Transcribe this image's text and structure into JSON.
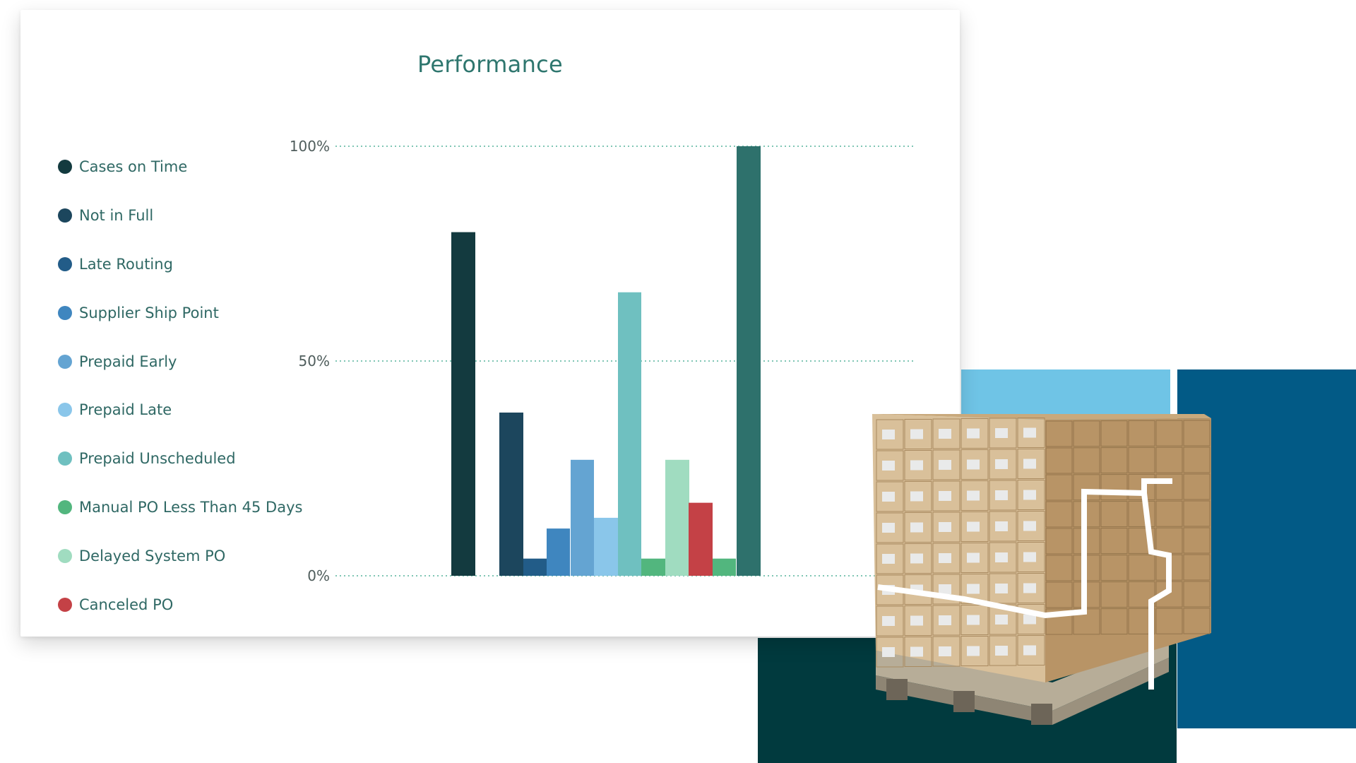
{
  "colors": {
    "accent_light_blue": "#6fc4e6",
    "accent_navy": "#025a86",
    "accent_dark_teal": "#013a3e",
    "title": "#2e766e",
    "grid": "#7fc6b4"
  },
  "illustration": {
    "icon": "pallet-of-boxes-icon"
  },
  "chart_data": {
    "type": "bar",
    "title": "Performance",
    "xlabel": "",
    "ylabel": "",
    "ylim": [
      0,
      100
    ],
    "y_ticks": [
      {
        "value": 0,
        "label": "0%"
      },
      {
        "value": 50,
        "label": "50%"
      },
      {
        "value": 100,
        "label": "100%"
      }
    ],
    "grid": "horizontal dotted",
    "legend_placement": "left",
    "series": [
      {
        "name": "Cases on Time",
        "value": 80,
        "color": "#133a3f"
      },
      {
        "name": "Not in Full",
        "value": 38,
        "color": "#1c465d"
      },
      {
        "name": "Late Routing",
        "value": 4,
        "color": "#225c88"
      },
      {
        "name": "Supplier Ship Point",
        "value": 11,
        "color": "#3f86bf"
      },
      {
        "name": "Prepaid Early",
        "value": 27,
        "color": "#64a4d2"
      },
      {
        "name": "Prepaid Late",
        "value": 13.5,
        "color": "#8ac6ea"
      },
      {
        "name": "Prepaid Unscheduled",
        "value": 66,
        "color": "#6fc0c0"
      },
      {
        "name": "Manual PO Less Than 45 Days",
        "value": 4,
        "color": "#52b67e"
      },
      {
        "name": "Delayed System PO",
        "value": 27,
        "color": "#a0dcc0"
      },
      {
        "name": "Canceled PO",
        "value": 17,
        "color": "#c44146"
      }
    ],
    "extra_bars": [
      {
        "value": 4,
        "color": "#52b67e"
      },
      {
        "value": 100,
        "color": "#2e716c"
      }
    ]
  }
}
